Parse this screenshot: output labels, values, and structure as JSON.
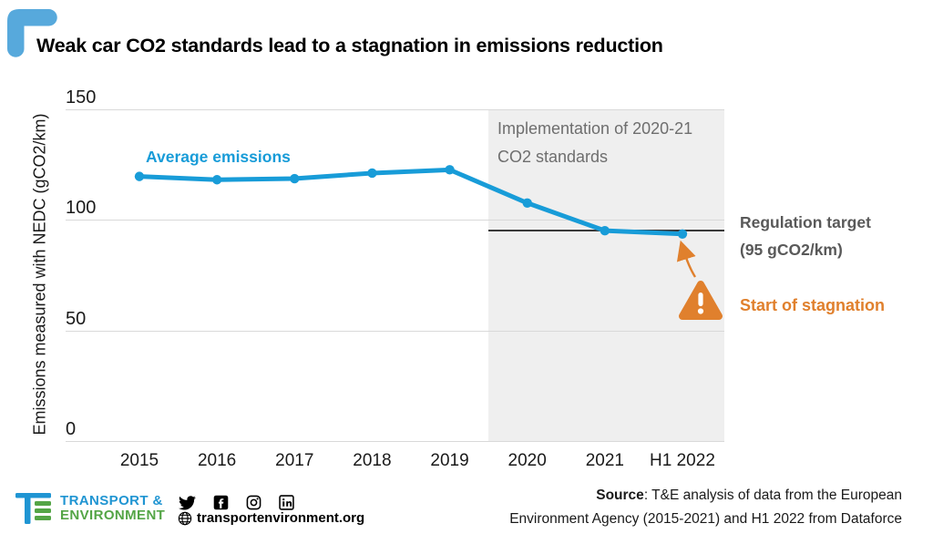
{
  "header": {
    "title": "Weak car CO2 standards lead to a stagnation in emissions reduction"
  },
  "chart_data": {
    "type": "line",
    "categories": [
      "2015",
      "2016",
      "2017",
      "2018",
      "2019",
      "2020",
      "2021",
      "H1 2022"
    ],
    "values": [
      119.5,
      118,
      118.5,
      121,
      122.5,
      107.5,
      95,
      93.5
    ],
    "series_label": "Average emissions",
    "ylabel": "Emissions measured with NEDC (gCO2/km)",
    "ylim": [
      0,
      150
    ],
    "yticks": [
      150,
      100,
      50,
      0
    ],
    "grid": "horizontal",
    "target": {
      "value": 95,
      "label_line1": "Regulation target",
      "label_line2": "(95 gCO2/km)"
    },
    "shaded_region": {
      "from_after_category": "2019",
      "to_end": true,
      "label_line1": "Implementation of 2020-21",
      "label_line2": "CO2 standards"
    },
    "annotation": {
      "label": "Start of stagnation",
      "points_at_category": "H1 2022"
    },
    "colors": {
      "line": "#189cd8",
      "shading": "#efefef",
      "target_line": "#3a3a3a",
      "orange": "#e0802d",
      "accent_corner": "#57a9dc"
    }
  },
  "footer": {
    "org_name_line1": "TRANSPORT &",
    "org_name_line2": "ENVIRONMENT",
    "website": "transportenvironment.org",
    "social_icons": [
      "twitter",
      "facebook",
      "instagram",
      "linkedin"
    ],
    "source_bold": "Source",
    "source_line1_rest": ": T&E analysis of data from the European",
    "source_line2": "Environment Agency (2015-2021) and H1 2022 from Dataforce"
  }
}
